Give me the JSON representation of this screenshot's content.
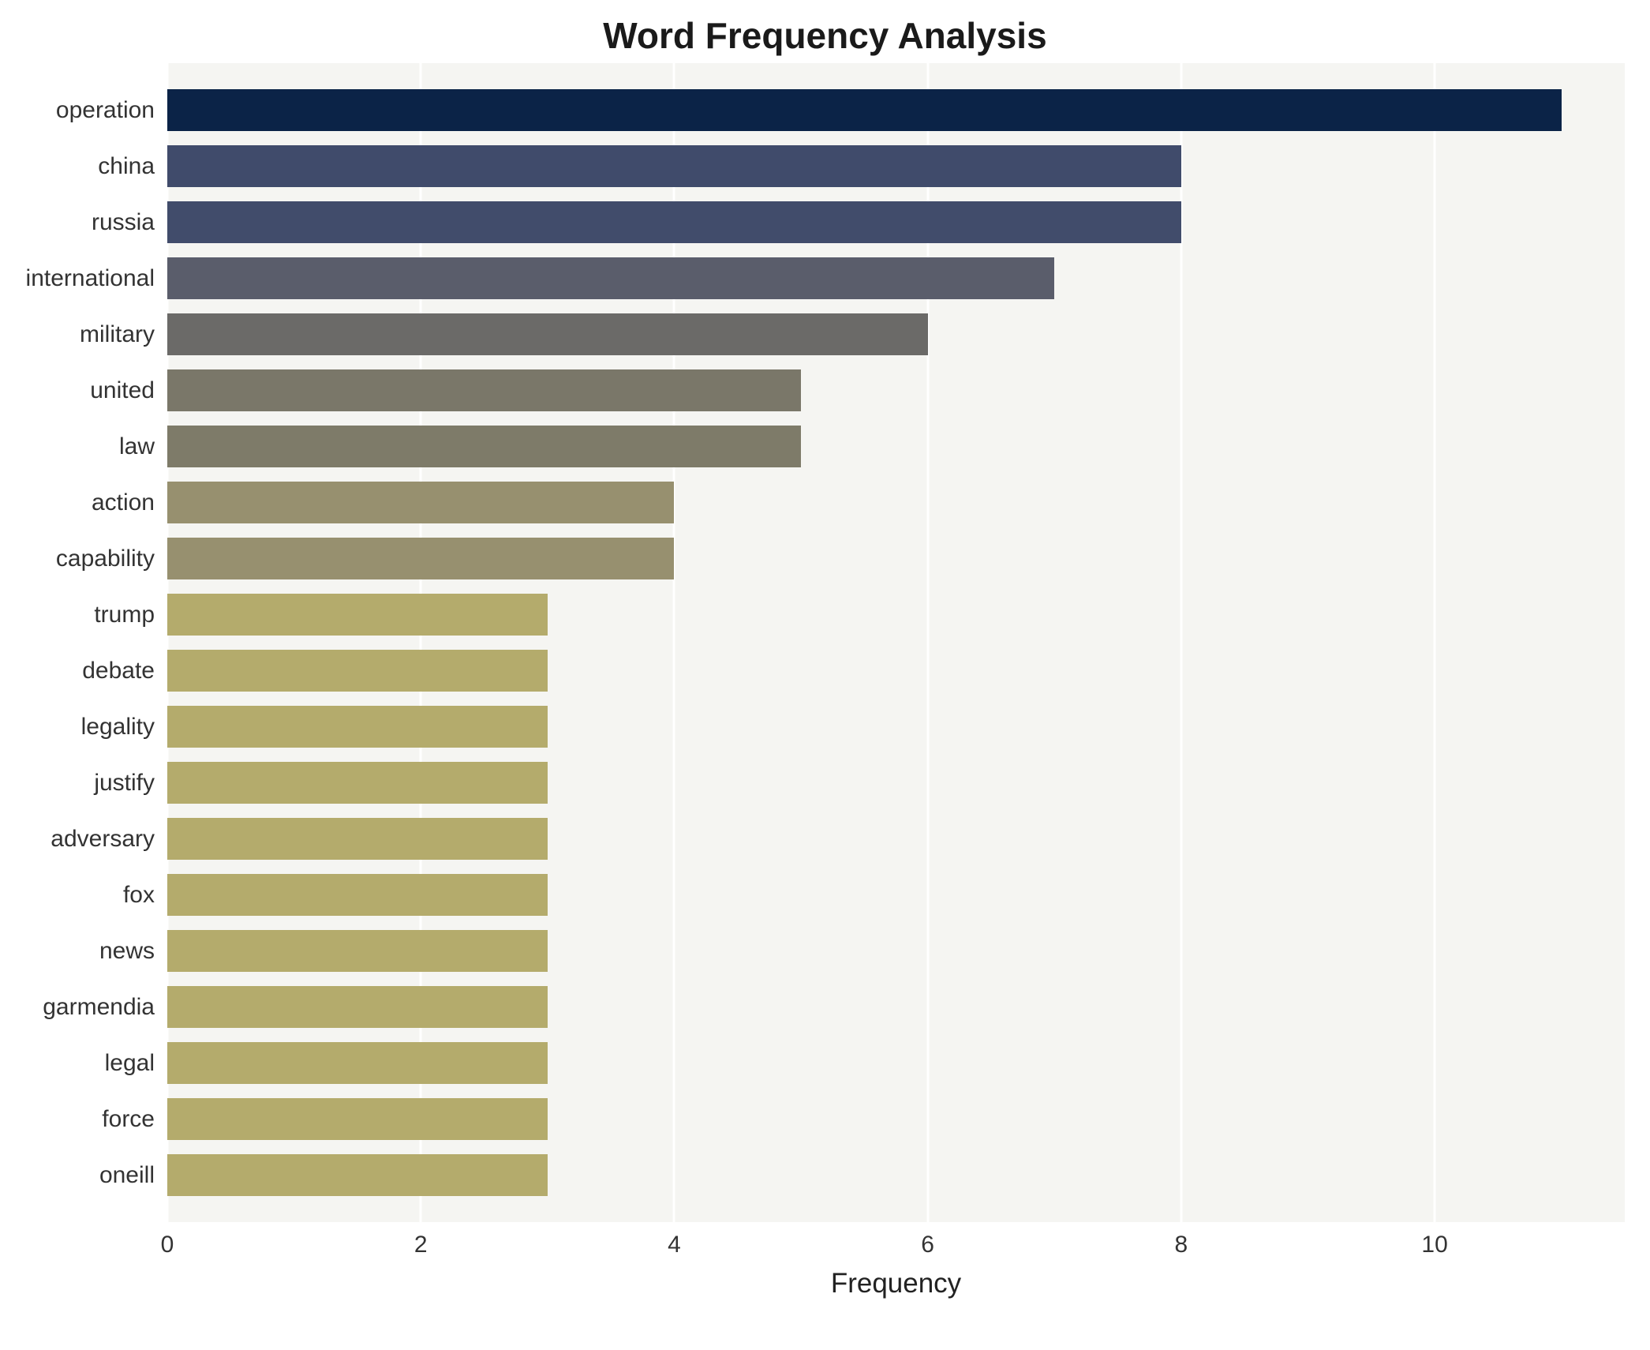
{
  "chart_data": {
    "type": "bar",
    "orientation": "horizontal",
    "title": "Word Frequency Analysis",
    "xlabel": "Frequency",
    "ylabel": "",
    "xlim": [
      0,
      11.5
    ],
    "xticks": [
      0,
      2,
      4,
      6,
      8,
      10
    ],
    "grid": true,
    "plot_background": "#f5f5f2",
    "gridline_color": "#ffffff",
    "categories": [
      "operation",
      "china",
      "russia",
      "international",
      "military",
      "united",
      "law",
      "action",
      "capability",
      "trump",
      "debate",
      "legality",
      "justify",
      "adversary",
      "fox",
      "news",
      "garmendia",
      "legal",
      "force",
      "oneill"
    ],
    "values": [
      11,
      8,
      8,
      7,
      6,
      5,
      5,
      4,
      4,
      3,
      3,
      3,
      3,
      3,
      3,
      3,
      3,
      3,
      3,
      3
    ],
    "colors": [
      "#0b2347",
      "#404b6b",
      "#414c6b",
      "#5a5d6b",
      "#6b6a68",
      "#7a7769",
      "#7e7b69",
      "#97906f",
      "#97906f",
      "#b4ab6c",
      "#b4ab6c",
      "#b4ab6c",
      "#b4ab6c",
      "#b4ab6c",
      "#b4ab6c",
      "#b4ab6c",
      "#b4ab6c",
      "#b4ab6c",
      "#b4ab6c",
      "#b4ab6c"
    ]
  }
}
